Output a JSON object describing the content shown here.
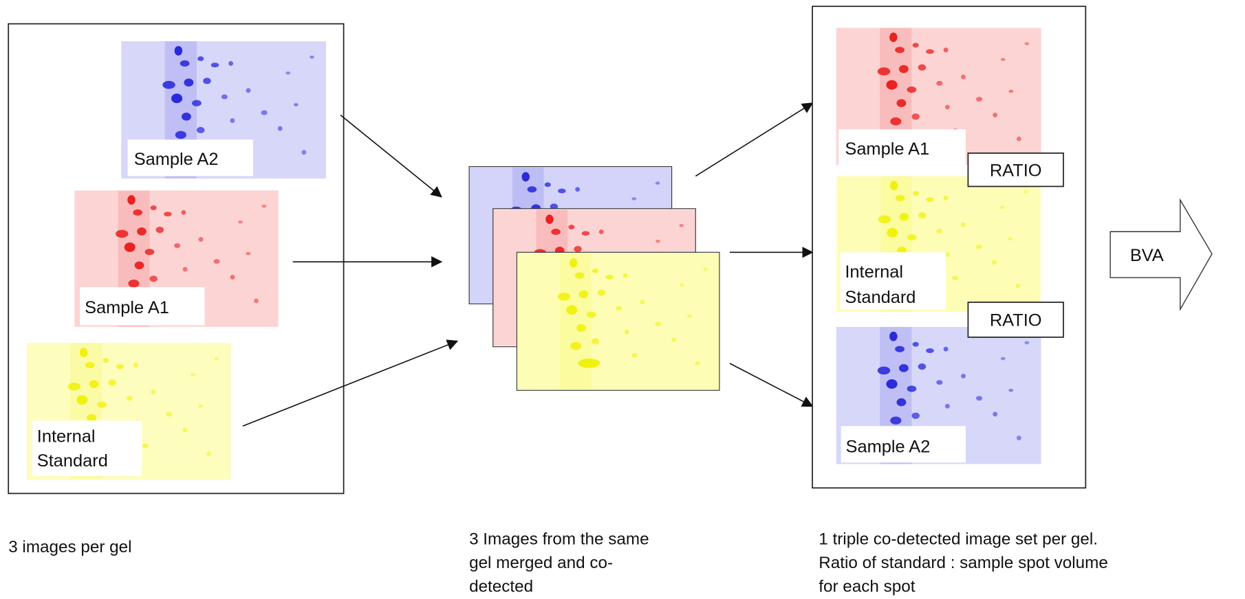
{
  "input": {
    "images": [
      {
        "label": [
          "Sample A2"
        ]
      },
      {
        "label": [
          "Sample A1"
        ]
      },
      {
        "label": [
          "Internal",
          "Standard"
        ]
      }
    ],
    "caption": [
      "3 images per gel"
    ]
  },
  "merged": {
    "caption": [
      "3 Images from the same",
      "gel merged and co-",
      "detected"
    ]
  },
  "output": {
    "images": [
      {
        "label": [
          "Sample A1"
        ]
      },
      {
        "label": [
          "Internal",
          "Standard"
        ]
      },
      {
        "label": [
          "Sample A2"
        ]
      }
    ],
    "ratios": [
      "RATIO",
      "RATIO"
    ],
    "caption": [
      "1 triple co-detected image set per gel.",
      "Ratio of standard : sample spot volume",
      "for each spot"
    ]
  },
  "result": {
    "label": "BVA"
  }
}
